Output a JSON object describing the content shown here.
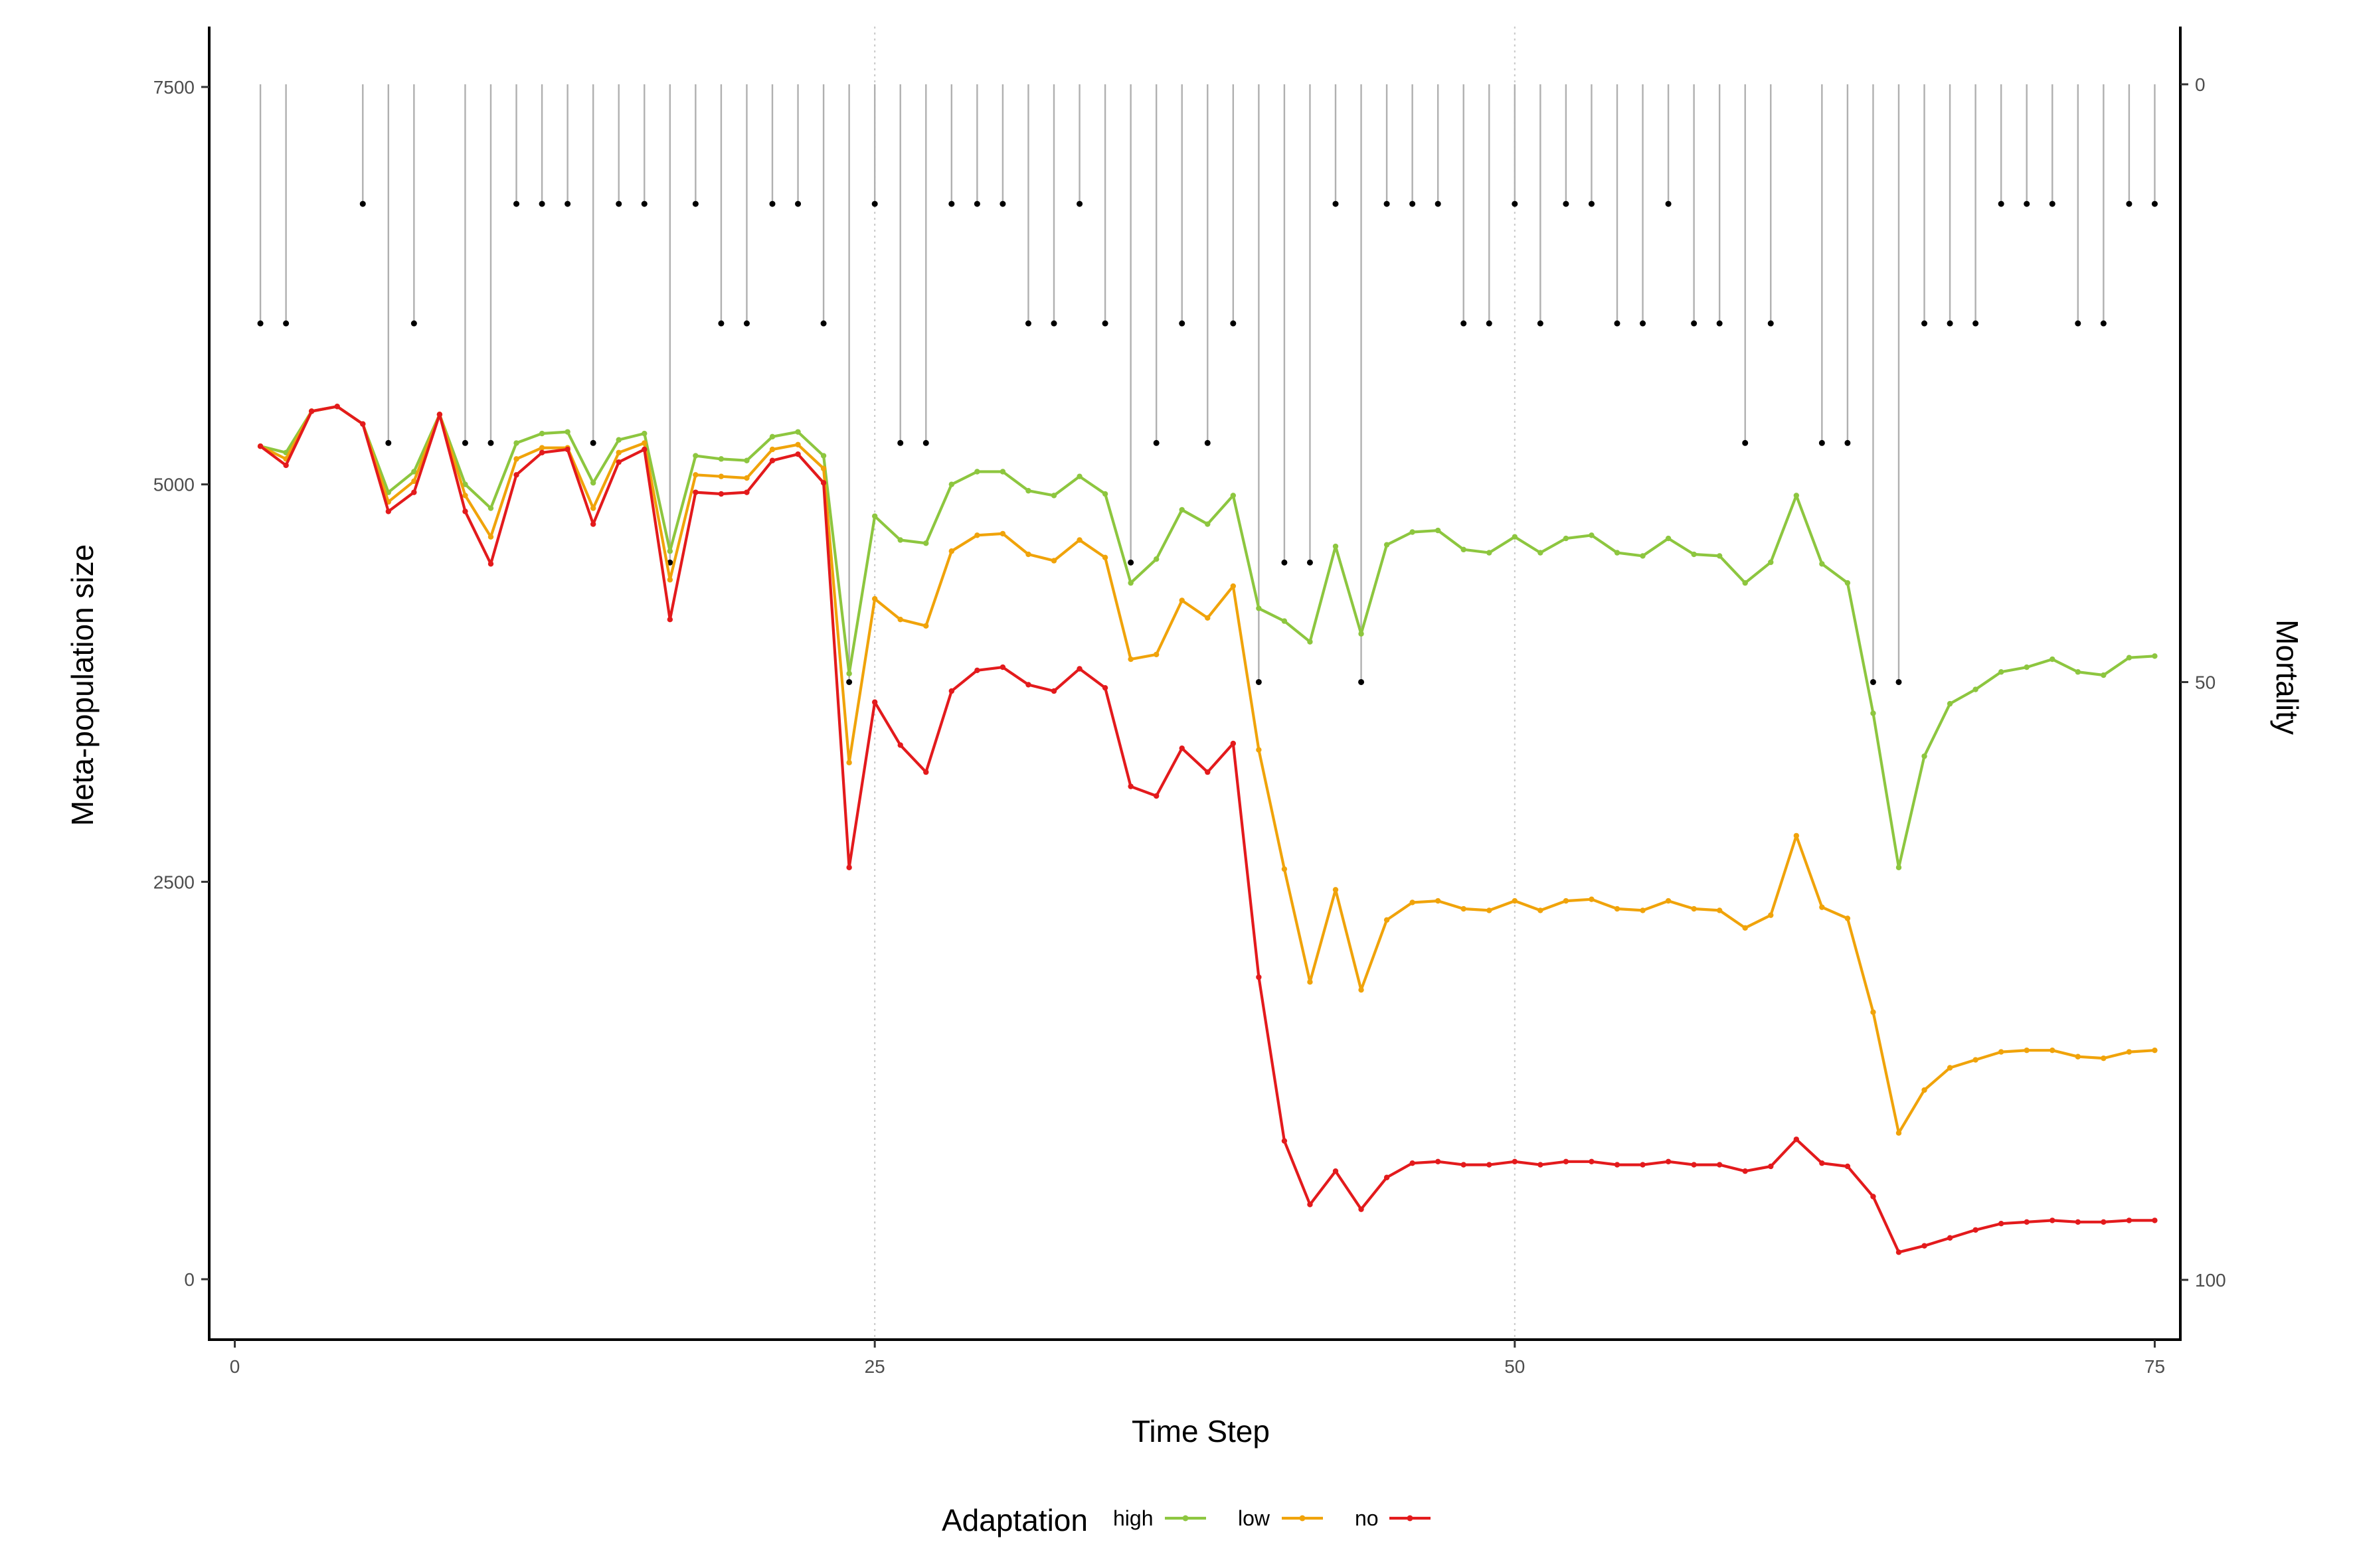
{
  "chart_data": {
    "type": "line",
    "xlabel": "Time Step",
    "ylabel": "Meta-population size",
    "y2label": "Mortality",
    "xlim": [
      -1,
      76
    ],
    "ylim": [
      -380,
      7880
    ],
    "y2lim": [
      -4.83,
      105
    ],
    "x_ticks": [
      0,
      25,
      50,
      75
    ],
    "y_ticks": [
      0,
      2500,
      5000,
      7500
    ],
    "y2_ticks": [
      0,
      50,
      100
    ],
    "grid_x": [
      25,
      50
    ],
    "legend": {
      "title": "Adaptation",
      "position": "bottom",
      "entries": [
        "high",
        "low",
        "no"
      ]
    },
    "colors": {
      "high": "#8dc63f",
      "low": "#f0a30a",
      "no": "#e31a1c",
      "mortality": "#b0b0b0",
      "mortality_point": "#000000"
    },
    "x": [
      1,
      2,
      3,
      4,
      5,
      6,
      7,
      8,
      9,
      10,
      11,
      12,
      13,
      14,
      15,
      16,
      17,
      18,
      19,
      20,
      21,
      22,
      23,
      24,
      25,
      26,
      27,
      28,
      29,
      30,
      31,
      32,
      33,
      34,
      35,
      36,
      37,
      38,
      39,
      40,
      41,
      42,
      43,
      44,
      45,
      46,
      47,
      48,
      49,
      50,
      51,
      52,
      53,
      54,
      55,
      56,
      57,
      58,
      59,
      60,
      61,
      62,
      63,
      64,
      65,
      66,
      67,
      68,
      69,
      70,
      71,
      72,
      73,
      74,
      75
    ],
    "series": [
      {
        "name": "high",
        "values": [
          5240,
          5200,
          5460,
          5490,
          5380,
          4950,
          5080,
          5440,
          5000,
          4850,
          5260,
          5320,
          5330,
          5010,
          5280,
          5320,
          4580,
          5180,
          5160,
          5150,
          5300,
          5330,
          5180,
          3810,
          4800,
          4650,
          4630,
          5000,
          5080,
          5080,
          4960,
          4930,
          5050,
          4940,
          4380,
          4530,
          4840,
          4750,
          4930,
          4220,
          4140,
          4010,
          4610,
          4060,
          4620,
          4700,
          4710,
          4590,
          4570,
          4670,
          4570,
          4660,
          4680,
          4570,
          4550,
          4660,
          4560,
          4550,
          4380,
          4510,
          4930,
          4500,
          4380,
          3560,
          2590,
          3290,
          3620,
          3710,
          3820,
          3850,
          3900,
          3820,
          3800,
          3910,
          3920
        ]
      },
      {
        "name": "low",
        "values": [
          5240,
          5160,
          5460,
          5490,
          5380,
          4890,
          5020,
          5440,
          4930,
          4670,
          5160,
          5230,
          5230,
          4850,
          5200,
          5260,
          4400,
          5060,
          5050,
          5040,
          5220,
          5250,
          5100,
          3250,
          4280,
          4150,
          4110,
          4580,
          4680,
          4690,
          4560,
          4520,
          4650,
          4540,
          3900,
          3930,
          4270,
          4160,
          4360,
          3330,
          2580,
          1870,
          2450,
          1820,
          2260,
          2370,
          2380,
          2330,
          2320,
          2380,
          2320,
          2380,
          2390,
          2330,
          2320,
          2380,
          2330,
          2320,
          2210,
          2290,
          2790,
          2340,
          2270,
          1680,
          920,
          1190,
          1330,
          1380,
          1430,
          1440,
          1440,
          1400,
          1390,
          1430,
          1440
        ]
      },
      {
        "name": "no",
        "values": [
          5240,
          5120,
          5460,
          5490,
          5380,
          4830,
          4950,
          5440,
          4830,
          4500,
          5060,
          5200,
          5220,
          4750,
          5140,
          5220,
          4150,
          4950,
          4940,
          4950,
          5150,
          5190,
          5010,
          2590,
          3630,
          3360,
          3190,
          3700,
          3830,
          3850,
          3740,
          3700,
          3840,
          3720,
          3100,
          3040,
          3340,
          3190,
          3370,
          1900,
          870,
          470,
          680,
          440,
          640,
          730,
          740,
          720,
          720,
          740,
          720,
          740,
          740,
          720,
          720,
          740,
          720,
          720,
          680,
          710,
          880,
          730,
          710,
          520,
          170,
          210,
          260,
          310,
          350,
          360,
          370,
          360,
          360,
          370,
          370
        ]
      },
      {
        "name": "mortality",
        "values": [
          20,
          20,
          null,
          null,
          10,
          30,
          20,
          null,
          30,
          30,
          10,
          10,
          10,
          30,
          10,
          10,
          40,
          10,
          20,
          20,
          10,
          10,
          20,
          50,
          10,
          30,
          30,
          10,
          10,
          10,
          20,
          20,
          10,
          20,
          40,
          30,
          20,
          30,
          20,
          50,
          40,
          40,
          10,
          50,
          10,
          10,
          10,
          20,
          20,
          10,
          20,
          10,
          10,
          20,
          20,
          10,
          20,
          20,
          30,
          20,
          null,
          30,
          30,
          50,
          50,
          20,
          20,
          20,
          10,
          10,
          10,
          20,
          20,
          10,
          10
        ]
      }
    ]
  }
}
